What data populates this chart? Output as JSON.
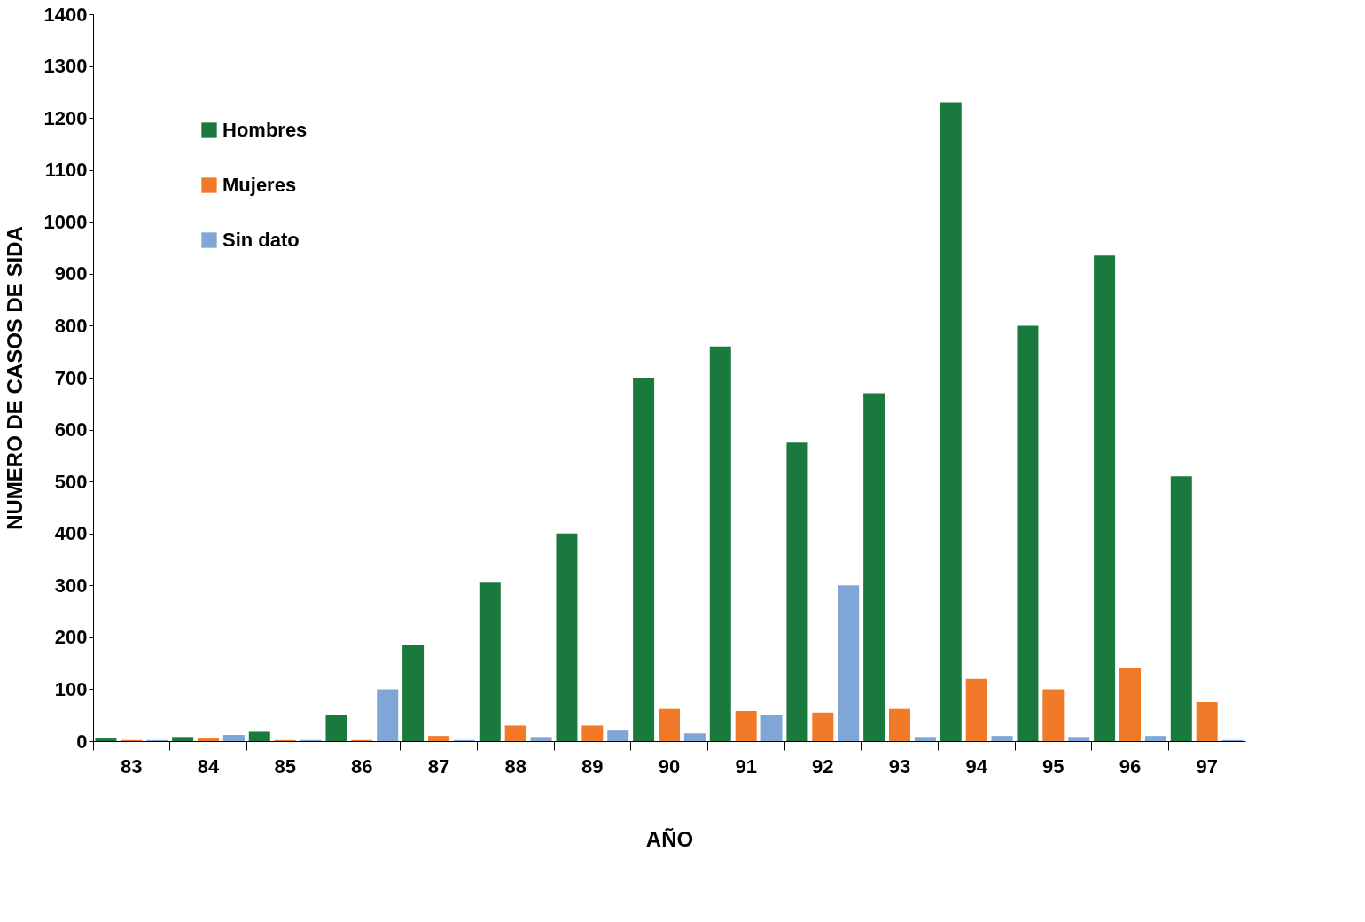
{
  "chart_data": {
    "type": "bar",
    "xlabel": "AÑO",
    "ylabel": "NUMERO DE CASOS DE SIDA",
    "categories": [
      "83",
      "84",
      "85",
      "86",
      "87",
      "88",
      "89",
      "90",
      "91",
      "92",
      "93",
      "94",
      "95",
      "96",
      "97"
    ],
    "series": [
      {
        "name": "Hombres",
        "color": "#1a7a3e",
        "values": [
          5,
          8,
          18,
          50,
          185,
          305,
          400,
          700,
          760,
          575,
          670,
          1230,
          800,
          935,
          510
        ]
      },
      {
        "name": "Mujeres",
        "color": "#f07a28",
        "values": [
          2,
          5,
          2,
          2,
          10,
          30,
          30,
          62,
          58,
          55,
          62,
          120,
          100,
          140,
          75
        ]
      },
      {
        "name": "Sin dato",
        "color": "#7fa6d6",
        "values": [
          2,
          12,
          2,
          100,
          2,
          8,
          22,
          15,
          50,
          300,
          8,
          10,
          8,
          10,
          2
        ]
      }
    ],
    "ylim": [
      0,
      1400
    ],
    "yticks": [
      0,
      100,
      200,
      300,
      400,
      500,
      600,
      700,
      800,
      900,
      1000,
      1100,
      1200,
      1300,
      1400
    ],
    "grid": false,
    "legend": "top left"
  }
}
